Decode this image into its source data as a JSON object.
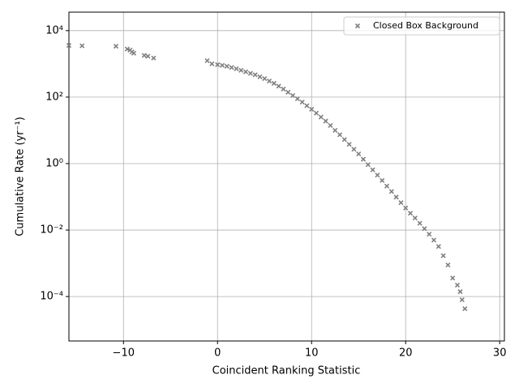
{
  "chart_data": {
    "type": "scatter",
    "xlabel": "Coincident Ranking Statistic",
    "ylabel": "Cumulative Rate (yr⁻¹)",
    "xlim": [
      -15.8,
      30.5
    ],
    "ylim": [
      4.6e-06,
      36000
    ],
    "log_y": true,
    "grid": true,
    "legend_position": "upper right",
    "xticks": [
      {
        "value": -10,
        "label": "−10"
      },
      0,
      10,
      20,
      30
    ],
    "yticks": [
      {
        "value": 0.0001,
        "label": "10⁻⁴"
      },
      {
        "value": 0.01,
        "label": "10⁻²"
      },
      {
        "value": 1,
        "label": "10⁰"
      },
      {
        "value": 100,
        "label": "10²"
      },
      {
        "value": 10000,
        "label": "10⁴"
      }
    ],
    "series": [
      {
        "name": "Closed Box Background",
        "color": "#808080",
        "x": [
          -15.8,
          -14.4,
          -10.8,
          -9.6,
          -9.3,
          -9.1,
          -8.9,
          -7.8,
          -7.4,
          -6.8,
          -1.1,
          -0.6,
          0,
          0.5,
          1,
          1.5,
          2,
          2.5,
          3,
          3.5,
          4,
          4.5,
          5,
          5.5,
          6,
          6.5,
          7,
          7.5,
          8,
          8.5,
          9,
          9.5,
          10,
          10.5,
          11,
          11.5,
          12,
          12.5,
          13,
          13.5,
          14,
          14.5,
          15,
          15.5,
          16,
          16.5,
          17,
          17.5,
          18,
          18.5,
          19,
          19.5,
          20,
          20.5,
          21,
          21.5,
          22,
          22.5,
          23,
          23.5,
          24,
          24.5,
          25,
          25.5,
          25.8,
          26,
          26.3
        ],
        "values": [
          3600,
          3500,
          3400,
          2800,
          2600,
          2300,
          2100,
          1800,
          1700,
          1500,
          1250,
          1000,
          950,
          900,
          850,
          780,
          710,
          640,
          575,
          520,
          470,
          410,
          360,
          305,
          260,
          215,
          175,
          140,
          112,
          89,
          71,
          55,
          43,
          33,
          25,
          19,
          14,
          10,
          7.4,
          5.3,
          3.8,
          2.7,
          1.95,
          1.35,
          0.93,
          0.65,
          0.45,
          0.31,
          0.21,
          0.145,
          0.098,
          0.067,
          0.046,
          0.032,
          0.023,
          0.016,
          0.011,
          0.0075,
          0.005,
          0.0032,
          0.0017,
          0.00089,
          0.00036,
          0.00022,
          0.00014,
          8e-05,
          4.3e-05
        ]
      }
    ]
  }
}
